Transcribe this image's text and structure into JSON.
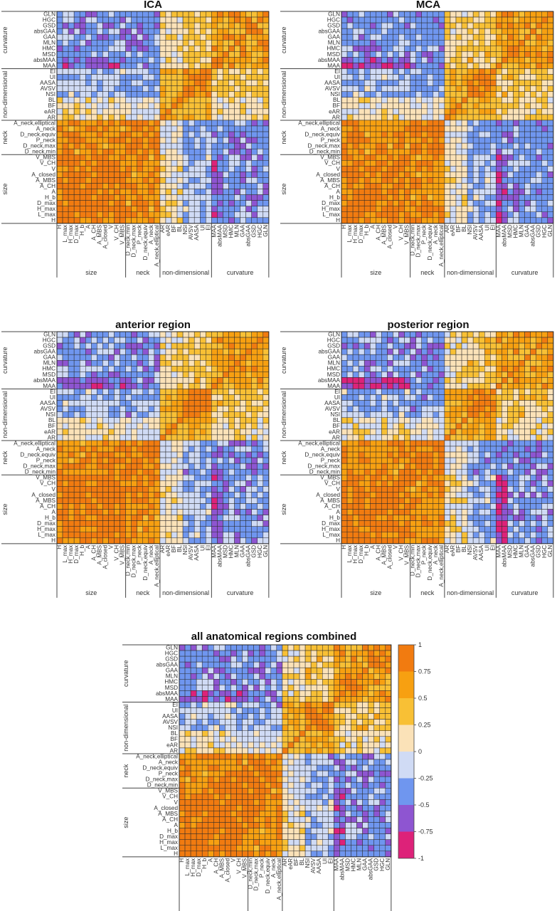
{
  "labels": [
    "H",
    "L_max",
    "H_max",
    "D_max",
    "H_b",
    "A",
    "A_CH",
    "A_MBS",
    "A_closed",
    "V",
    "V_CH",
    "V_MBS",
    "D_neck,min",
    "D_neck,max",
    "P_neck",
    "D_neck,equiv",
    "A_neck",
    "A_neck,elliptical",
    "AR",
    "eAR",
    "BF",
    "BL",
    "NSI",
    "AVSV",
    "AASA",
    "UI",
    "EI",
    "MAA",
    "absMAA",
    "MSD",
    "HMC",
    "MLN",
    "GAA",
    "absGAA",
    "GSD",
    "HGC",
    "GLN"
  ],
  "groups": [
    {
      "name": "size",
      "count": 12
    },
    {
      "name": "neck",
      "count": 6
    },
    {
      "name": "non-dimensional",
      "count": 9
    },
    {
      "name": "curvature",
      "count": 10
    }
  ],
  "colors": {
    "-1": "#dd2279",
    "-0.75": "#8e55d1",
    "-0.5": "#6f96ef",
    "-0.25": "#d0dbf5",
    "0": "#fbe2b8",
    "0.25": "#f8c035",
    "0.5": "#f7a011",
    "0.75": "#f17b10"
  },
  "chart_data": [
    {
      "id": "ica",
      "type": "heatmap",
      "title": "ICA",
      "xlabel_groups": [
        "size",
        "neck",
        "non-dimensional",
        "curvature"
      ],
      "ylabel_groups": [
        "size",
        "neck",
        "non-dimensional",
        "curvature"
      ],
      "range": [
        -1,
        1
      ],
      "matrix": "labels x labels correlation values, encoded in cell colors (see script)"
    },
    {
      "id": "mca",
      "type": "heatmap",
      "title": "MCA",
      "range": [
        -1,
        1
      ]
    },
    {
      "id": "anterior",
      "type": "heatmap",
      "title": "anterior region",
      "range": [
        -1,
        1
      ]
    },
    {
      "id": "posterior",
      "type": "heatmap",
      "title": "posterior region",
      "range": [
        -1,
        1
      ]
    },
    {
      "id": "combined",
      "type": "heatmap",
      "title": "all anatomical regions combined",
      "range": [
        -1,
        1
      ],
      "colorbar_ticks": [
        "1",
        "0.75",
        "0.5",
        "0.25",
        "0",
        "-0.25",
        "-0.5",
        "-0.75",
        "-1"
      ]
    }
  ]
}
